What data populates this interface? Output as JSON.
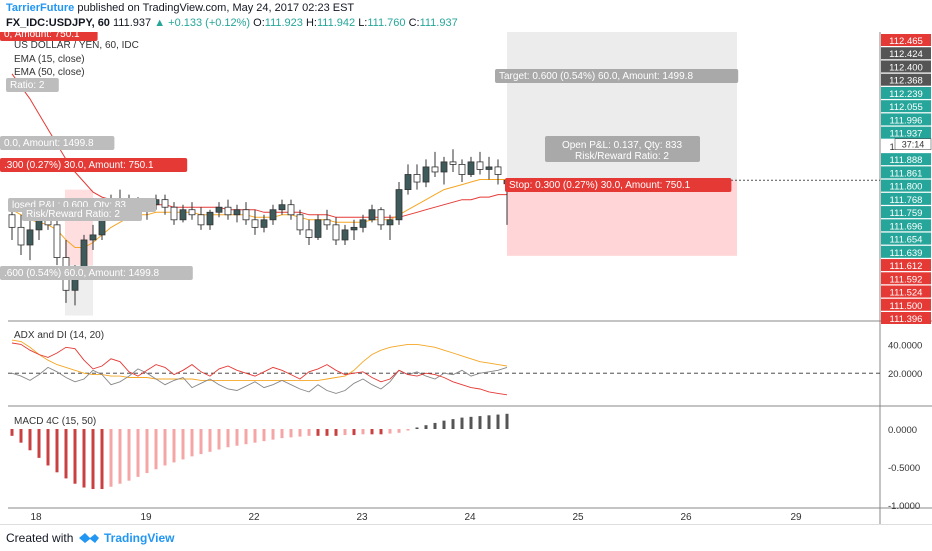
{
  "header": {
    "author": "TarrierFuture",
    "published_text": "published on TradingView.com, May 24, 2017 02:23 EST",
    "symbol": "FX_IDC:USDJPY, 60",
    "last": "111.937",
    "change": "▲ +0.133 (+0.12%)",
    "open_label": "O:",
    "open": "111.923",
    "high_label": "H:",
    "high": "111.942",
    "low_label": "L:",
    "low": "111.760",
    "close_label": "C:",
    "close": "111.937"
  },
  "chart_data": [
    {
      "type": "candlestick",
      "title": "US DOLLAR / YEN, 60, IDC",
      "legend": [
        "EMA (15, close)",
        "EMA (50, close)"
      ],
      "x_ticks": [
        "18",
        "19",
        "22",
        "23",
        "24",
        "25",
        "26",
        "29"
      ],
      "y_ticks": [
        "112.465",
        "112.424",
        "112.400",
        "112.368",
        "112.239",
        "112.055",
        "111.996",
        "111.937",
        "111.903",
        "111.888",
        "111.861",
        "111.800",
        "111.768",
        "111.759",
        "111.696",
        "111.654",
        "111.639",
        "111.612",
        "111.592",
        "111.524",
        "111.500",
        "111.396"
      ],
      "current_price": "111.937",
      "countdown": "37:14",
      "ylim": [
        111.39,
        112.51
      ],
      "ohlc": [
        [
          111.8,
          111.86,
          111.7,
          111.75
        ],
        [
          111.75,
          111.8,
          111.64,
          111.68
        ],
        [
          111.68,
          111.78,
          111.62,
          111.74
        ],
        [
          111.74,
          111.82,
          111.7,
          111.79
        ],
        [
          111.79,
          111.84,
          111.74,
          111.76
        ],
        [
          111.76,
          111.8,
          111.6,
          111.63
        ],
        [
          111.63,
          111.7,
          111.45,
          111.5
        ],
        [
          111.5,
          111.6,
          111.44,
          111.56
        ],
        [
          111.56,
          111.72,
          111.55,
          111.7
        ],
        [
          111.7,
          111.76,
          111.66,
          111.72
        ],
        [
          111.72,
          111.86,
          111.7,
          111.82
        ],
        [
          111.82,
          111.88,
          111.78,
          111.86
        ],
        [
          111.86,
          111.9,
          111.8,
          111.84
        ],
        [
          111.84,
          111.88,
          111.79,
          111.85
        ],
        [
          111.85,
          111.87,
          111.8,
          111.82
        ],
        [
          111.82,
          111.86,
          111.78,
          111.84
        ],
        [
          111.84,
          111.88,
          111.82,
          111.86
        ],
        [
          111.86,
          111.88,
          111.8,
          111.83
        ],
        [
          111.83,
          111.85,
          111.76,
          111.78
        ],
        [
          111.78,
          111.84,
          111.77,
          111.82
        ],
        [
          111.82,
          111.85,
          111.78,
          111.8
        ],
        [
          111.8,
          111.83,
          111.74,
          111.76
        ],
        [
          111.76,
          111.82,
          111.74,
          111.81
        ],
        [
          111.81,
          111.85,
          111.79,
          111.83
        ],
        [
          111.83,
          111.86,
          111.78,
          111.8
        ],
        [
          111.8,
          111.84,
          111.77,
          111.82
        ],
        [
          111.82,
          111.85,
          111.76,
          111.78
        ],
        [
          111.78,
          111.82,
          111.72,
          111.75
        ],
        [
          111.75,
          111.8,
          111.73,
          111.78
        ],
        [
          111.78,
          111.84,
          111.76,
          111.82
        ],
        [
          111.82,
          111.86,
          111.8,
          111.84
        ],
        [
          111.84,
          111.86,
          111.78,
          111.8
        ],
        [
          111.8,
          111.82,
          111.72,
          111.74
        ],
        [
          111.74,
          111.78,
          111.68,
          111.71
        ],
        [
          111.71,
          111.8,
          111.7,
          111.78
        ],
        [
          111.78,
          111.82,
          111.74,
          111.76
        ],
        [
          111.76,
          111.79,
          111.68,
          111.7
        ],
        [
          111.7,
          111.76,
          111.68,
          111.74
        ],
        [
          111.74,
          111.78,
          111.7,
          111.75
        ],
        [
          111.75,
          111.8,
          111.73,
          111.78
        ],
        [
          111.78,
          111.84,
          111.77,
          111.82
        ],
        [
          111.82,
          111.83,
          111.74,
          111.76
        ],
        [
          111.76,
          111.8,
          111.7,
          111.78
        ],
        [
          111.78,
          111.93,
          111.76,
          111.9
        ],
        [
          111.9,
          112.0,
          111.88,
          111.96
        ],
        [
          111.96,
          112.0,
          111.9,
          111.93
        ],
        [
          111.93,
          112.02,
          111.91,
          111.99
        ],
        [
          111.99,
          112.05,
          111.95,
          111.97
        ],
        [
          111.97,
          112.03,
          111.92,
          112.01
        ],
        [
          112.01,
          112.06,
          111.97,
          112.0
        ],
        [
          112.0,
          112.02,
          111.93,
          111.96
        ],
        [
          111.96,
          112.03,
          111.95,
          112.01
        ],
        [
          112.01,
          112.05,
          111.96,
          111.98
        ],
        [
          111.98,
          112.03,
          111.94,
          111.99
        ],
        [
          111.99,
          112.02,
          111.92,
          111.96
        ],
        [
          111.923,
          111.942,
          111.76,
          111.937
        ]
      ],
      "ema15": [
        111.82,
        111.8,
        111.78,
        111.77,
        111.76,
        111.74,
        111.7,
        111.67,
        111.67,
        111.69,
        111.72,
        111.75,
        111.77,
        111.79,
        111.8,
        111.8,
        111.81,
        111.81,
        111.81,
        111.81,
        111.81,
        111.8,
        111.8,
        111.8,
        111.8,
        111.8,
        111.8,
        111.79,
        111.79,
        111.79,
        111.8,
        111.8,
        111.79,
        111.78,
        111.78,
        111.78,
        111.77,
        111.77,
        111.77,
        111.77,
        111.78,
        111.78,
        111.78,
        111.8,
        111.82,
        111.84,
        111.86,
        111.88,
        111.9,
        111.91,
        111.92,
        111.93,
        111.94,
        111.94,
        111.94,
        111.94
      ],
      "ema50": [
        112.36,
        112.31,
        112.26,
        112.2,
        112.14,
        112.08,
        112.02,
        111.97,
        111.93,
        111.89,
        111.87,
        111.86,
        111.85,
        111.85,
        111.85,
        111.84,
        111.84,
        111.84,
        111.83,
        111.83,
        111.83,
        111.83,
        111.83,
        111.83,
        111.82,
        111.82,
        111.82,
        111.82,
        111.81,
        111.81,
        111.81,
        111.81,
        111.81,
        111.8,
        111.8,
        111.8,
        111.79,
        111.79,
        111.79,
        111.79,
        111.79,
        111.79,
        111.79,
        111.79,
        111.8,
        111.81,
        111.82,
        111.83,
        111.84,
        111.85,
        111.86,
        111.86,
        111.87,
        111.87,
        111.88,
        111.88
      ],
      "position_tool": {
        "target_label": "Target: 0.600 (0.54%) 60.0, Amount: 1499.8",
        "pnl_label": "Open P&L: 0.137, Qty: 833",
        "rr_label": "Risk/Reward Ratio: 2",
        "stop_label": "Stop: 0.300 (0.27%) 30.0, Amount: 750.1"
      },
      "left_partial_labels": [
        "0, Amount: 750.1",
        "Ratio: 2",
        "0.0, Amount: 1499.8",
        ".300 (0.27%) 30.0, Amount: 750.1",
        "losed P&L: 0.600, Qty: 83",
        "Risk/Reward Ratio: 2",
        ".600 (0.54%) 60.0, Amount: 1499.8"
      ],
      "colors": {
        "up": "#26a69a",
        "down": "#ef5350",
        "ema15": "#f5a623",
        "ema50": "#e53935"
      }
    },
    {
      "type": "line",
      "title": "ADX and DI (14, 20)",
      "y_ticks": [
        "40.0000",
        "20.0000"
      ],
      "ylim": [
        0,
        50
      ],
      "threshold": 20,
      "series": [
        {
          "values": [
            43,
            42,
            38,
            33,
            29,
            26,
            24,
            22,
            20,
            19,
            19,
            18,
            18,
            17,
            17,
            17,
            16,
            16,
            16,
            16,
            16,
            15,
            15,
            15,
            15,
            15,
            15,
            15,
            15,
            15,
            15,
            15,
            15,
            15,
            15,
            16,
            17,
            18,
            22,
            28,
            33,
            36,
            38,
            39,
            40,
            40,
            39,
            38,
            36,
            34,
            32,
            30,
            28,
            27,
            26,
            25
          ]
        },
        {
          "values": [
            20,
            18,
            15,
            19,
            24,
            21,
            17,
            14,
            16,
            22,
            19,
            12,
            14,
            18,
            23,
            20,
            16,
            12,
            15,
            17,
            10,
            13,
            16,
            12,
            9,
            8,
            11,
            14,
            10,
            12,
            15,
            12,
            9,
            7,
            12,
            8,
            6,
            8,
            13,
            16,
            12,
            9,
            14,
            22,
            19,
            21,
            18,
            16,
            20,
            19,
            22,
            18,
            20,
            21,
            22,
            24
          ]
        },
        {
          "values": [
            41,
            40,
            36,
            33,
            31,
            34,
            38,
            37,
            29,
            23,
            25,
            30,
            28,
            21,
            18,
            22,
            26,
            24,
            19,
            22,
            26,
            21,
            18,
            23,
            25,
            22,
            20,
            18,
            21,
            24,
            22,
            19,
            16,
            21,
            23,
            26,
            22,
            19,
            20,
            21,
            17,
            14,
            16,
            22,
            19,
            18,
            20,
            19,
            17,
            14,
            12,
            10,
            9,
            7,
            6,
            5
          ]
        }
      ]
    },
    {
      "type": "bar",
      "title": "MACD 4C (15, 50)",
      "y_ticks": [
        "0.0000",
        "-0.5000",
        "-1.0000"
      ],
      "ylim": [
        -1.0,
        0.25
      ],
      "values": [
        -0.09,
        -0.18,
        -0.28,
        -0.38,
        -0.48,
        -0.57,
        -0.65,
        -0.72,
        -0.77,
        -0.79,
        -0.79,
        -0.76,
        -0.72,
        -0.68,
        -0.63,
        -0.58,
        -0.53,
        -0.48,
        -0.44,
        -0.4,
        -0.36,
        -0.33,
        -0.3,
        -0.27,
        -0.24,
        -0.22,
        -0.2,
        -0.18,
        -0.16,
        -0.14,
        -0.12,
        -0.11,
        -0.1,
        -0.09,
        -0.09,
        -0.09,
        -0.09,
        -0.08,
        -0.08,
        -0.07,
        -0.07,
        -0.07,
        -0.06,
        -0.05,
        -0.02,
        0.02,
        0.05,
        0.08,
        0.11,
        0.13,
        0.15,
        0.16,
        0.17,
        0.18,
        0.19,
        0.2
      ]
    }
  ],
  "footer": {
    "created_with": "Created with",
    "brand": "TradingView"
  }
}
